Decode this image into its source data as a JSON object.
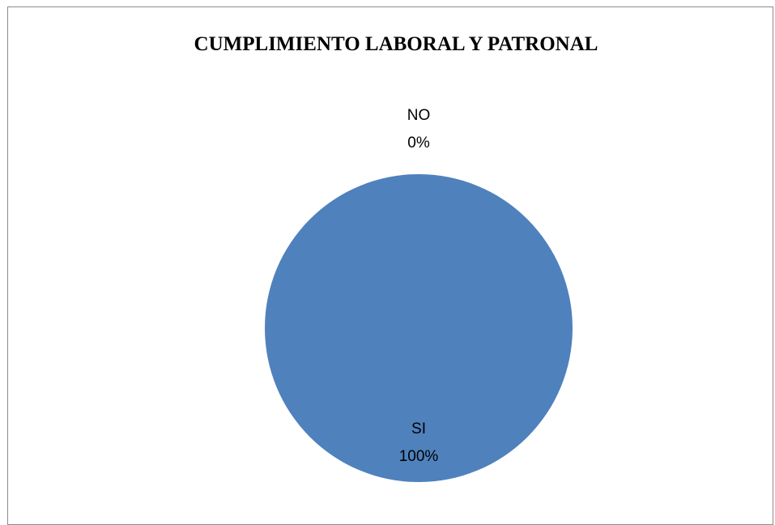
{
  "chart_data": {
    "type": "pie",
    "title": "CUMPLIMIENTO LABORAL Y PATRONAL",
    "slices": [
      {
        "label": "NO",
        "value": 0,
        "percent_label": "0%",
        "color": "#4f81bd"
      },
      {
        "label": "SI",
        "value": 100,
        "percent_label": "100%",
        "color": "#4f81bd"
      }
    ],
    "legend": "none"
  }
}
